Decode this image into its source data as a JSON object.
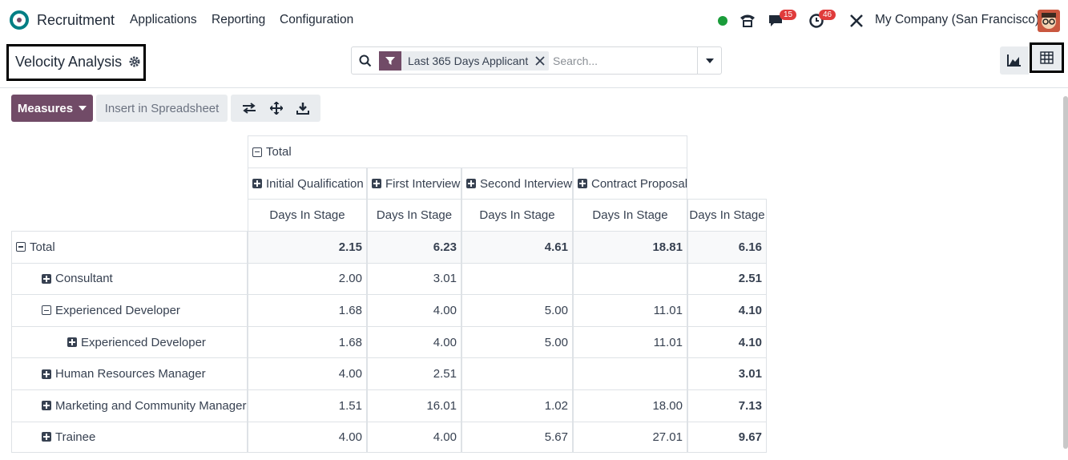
{
  "navbar": {
    "app": "Recruitment",
    "menus": [
      "Applications",
      "Reporting",
      "Configuration"
    ],
    "message_count": "15",
    "activity_count": "46",
    "company": "My Company (San Francisco)"
  },
  "control_panel": {
    "title": "Velocity Analysis",
    "facet": "Last 365 Days Applicant",
    "search_placeholder": "Search..."
  },
  "toolbar": {
    "measures": "Measures",
    "insert": "Insert in Spreadsheet"
  },
  "pivot": {
    "col_total": "Total",
    "col_groups": [
      "Initial Qualification",
      "First Interview",
      "Second Interview",
      "Contract Proposal"
    ],
    "measure": "Days In Stage",
    "rows": [
      {
        "label": "Total",
        "level": 0,
        "expanded": true,
        "values": [
          "2.15",
          "6.23",
          "4.61",
          "18.81",
          "6.16"
        ]
      },
      {
        "label": "Consultant",
        "level": 1,
        "expanded": false,
        "values": [
          "2.00",
          "3.01",
          null,
          null,
          "2.51"
        ]
      },
      {
        "label": "Experienced Developer",
        "level": 1,
        "expanded": true,
        "values": [
          "1.68",
          "4.00",
          "5.00",
          "11.01",
          "4.10"
        ]
      },
      {
        "label": "Experienced Developer",
        "level": 2,
        "expanded": false,
        "values": [
          "1.68",
          "4.00",
          "5.00",
          "11.01",
          "4.10"
        ]
      },
      {
        "label": "Human Resources Manager",
        "level": 1,
        "expanded": false,
        "values": [
          "4.00",
          "2.51",
          null,
          null,
          "3.01"
        ]
      },
      {
        "label": "Marketing and Community Manager",
        "level": 1,
        "expanded": false,
        "values": [
          "1.51",
          "16.01",
          "1.02",
          "18.00",
          "7.13"
        ]
      },
      {
        "label": "Trainee",
        "level": 1,
        "expanded": false,
        "values": [
          "4.00",
          "4.00",
          "5.67",
          "27.01",
          "9.67"
        ]
      }
    ]
  }
}
